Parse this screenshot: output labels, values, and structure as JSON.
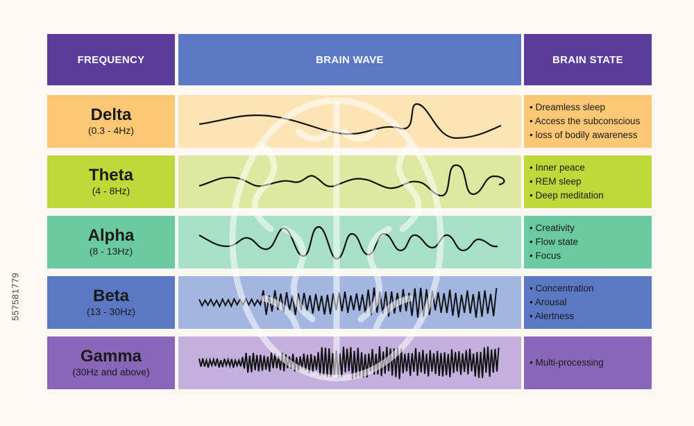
{
  "side_id": "557581779",
  "headers": {
    "frequency": "FREQUENCY",
    "brain_wave": "BRAIN WAVE",
    "brain_state": "BRAIN STATE"
  },
  "rows": [
    {
      "name": "Delta",
      "range": "(0.3 - 4Hz)",
      "states": [
        "Dreamless sleep",
        "Access the subconscious",
        "loss of bodily awareness"
      ],
      "colors": {
        "freq": "#fcc876",
        "wave": "#fde4b6",
        "state": "#fcc876"
      }
    },
    {
      "name": "Theta",
      "range": "(4 - 8Hz)",
      "states": [
        "Inner peace",
        "REM sleep",
        "Deep meditation"
      ],
      "colors": {
        "freq": "#bfd83a",
        "wave": "#dde9a0",
        "state": "#bfd83a"
      }
    },
    {
      "name": "Alpha",
      "range": "(8 - 13Hz)",
      "states": [
        "Creativity",
        "Flow state",
        "Focus"
      ],
      "colors": {
        "freq": "#6ccaa0",
        "wave": "#a8dfc7",
        "state": "#6ccaa0"
      }
    },
    {
      "name": "Beta",
      "range": "(13 - 30Hz)",
      "states": [
        "Concentration",
        "Arousal",
        "Alertness"
      ],
      "colors": {
        "freq": "#5b78c4",
        "wave": "#a3b6e1",
        "state": "#5b78c4"
      }
    },
    {
      "name": "Gamma",
      "range": "(30Hz and above)",
      "states": [
        "Multi-processing"
      ],
      "colors": {
        "freq": "#8a66b8",
        "wave": "#c3b0dd",
        "state": "#8a66b8"
      }
    }
  ]
}
